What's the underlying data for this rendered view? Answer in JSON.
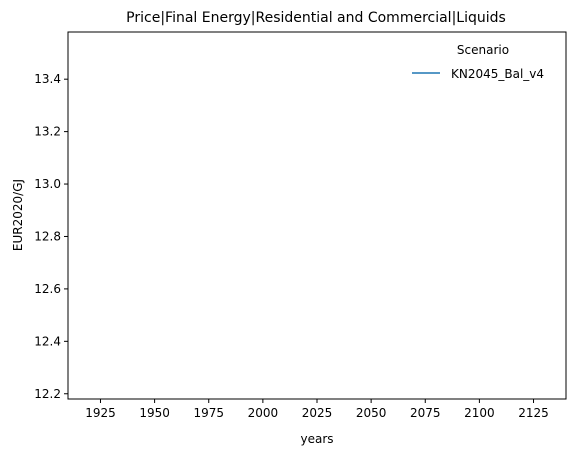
{
  "chart_data": {
    "type": "line",
    "title": "Price|Final Energy|Residential and Commercial|Liquids",
    "xlabel": "years",
    "ylabel": "EUR2020/GJ",
    "xlim": [
      1910,
      2140
    ],
    "ylim": [
      12.18,
      13.58
    ],
    "x_ticks": [
      1925,
      1950,
      1975,
      2000,
      2025,
      2050,
      2075,
      2100,
      2125
    ],
    "y_ticks": [
      12.2,
      12.4,
      12.6,
      12.8,
      13.0,
      13.2,
      13.4
    ],
    "grid": false,
    "legend": {
      "title": "Scenario",
      "placement": "top-right"
    },
    "series": [
      {
        "name": "KN2045_Bal_v4",
        "color": "#1f77b4",
        "x": [],
        "y": []
      }
    ]
  }
}
